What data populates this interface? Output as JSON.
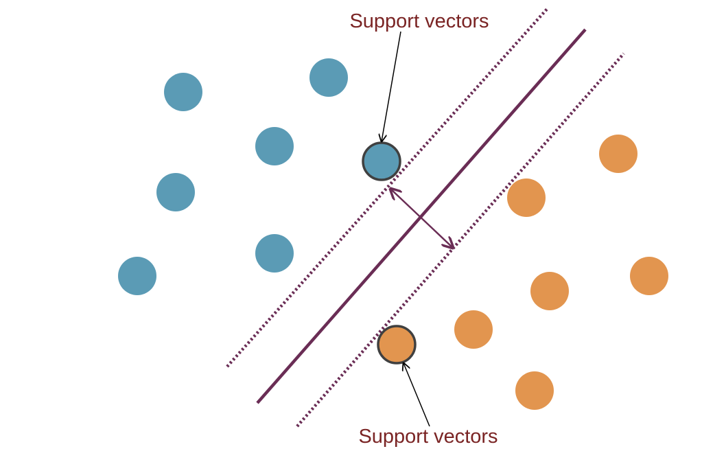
{
  "annotations": {
    "top_label": "Support vectors",
    "bottom_label": "Support vectors"
  },
  "colors": {
    "class_a": "#5b9bb5",
    "class_b": "#e2954f",
    "hyperplane": "#6a2d55",
    "margin": "#6a2d55",
    "support_vector_outline": "#404040",
    "label_text": "#7a2424",
    "pointer": "#000000"
  },
  "diagram_data": {
    "class_a_point_count": 7,
    "class_b_point_count": 7,
    "support_vectors": [
      "class_a",
      "class_b"
    ]
  }
}
